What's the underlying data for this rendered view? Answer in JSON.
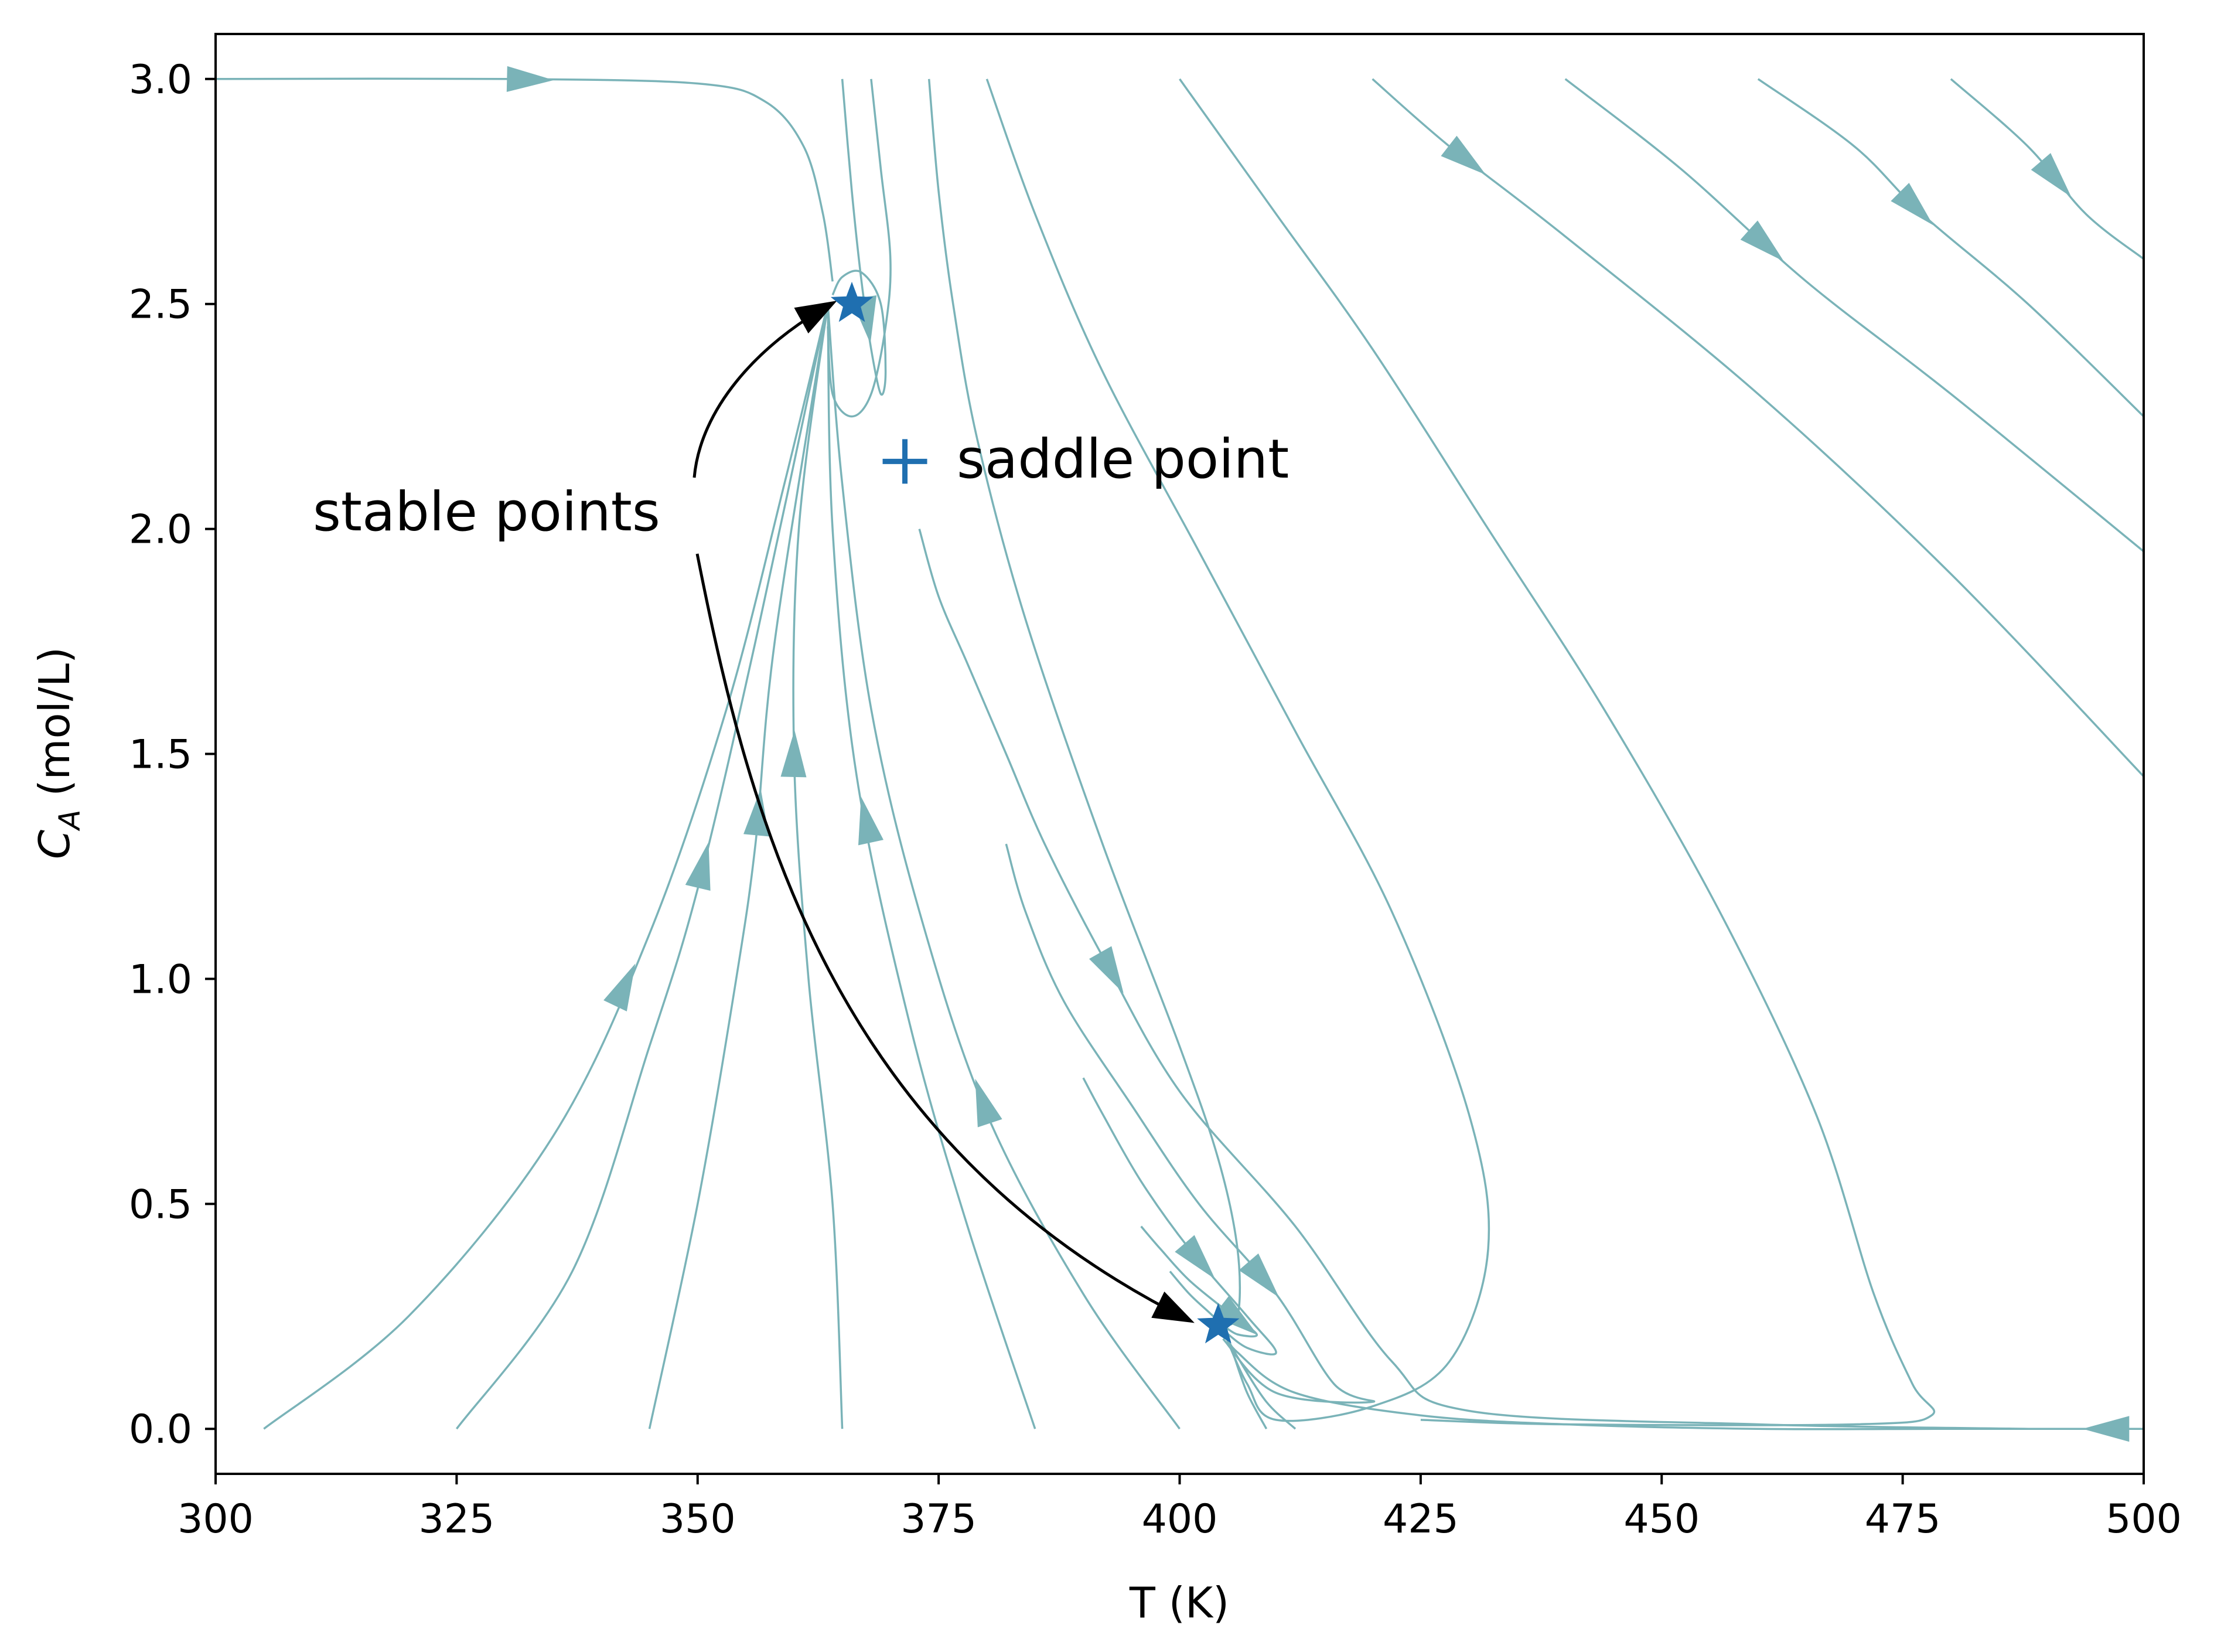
{
  "chart_data": {
    "type": "streamplot",
    "xlabel": "T (K)",
    "ylabel_main": "C",
    "ylabel_subscript": "A",
    "ylabel_unit": "(mol/L)",
    "xlim": [
      300,
      500
    ],
    "ylim": [
      -0.1,
      3.1
    ],
    "xticks": [
      300,
      325,
      350,
      375,
      400,
      425,
      450,
      475,
      500
    ],
    "yticks": [
      0.0,
      0.5,
      1.0,
      1.5,
      2.0,
      2.5,
      3.0
    ],
    "xtick_labels": [
      "300",
      "325",
      "350",
      "375",
      "400",
      "425",
      "450",
      "475",
      "500"
    ],
    "ytick_labels": [
      "0.0",
      "0.5",
      "1.0",
      "1.5",
      "2.0",
      "2.5",
      "3.0"
    ],
    "grid": false,
    "stream_color": "#7ab3b8",
    "marker_color": "#1f6fb0",
    "equilibria": [
      {
        "kind": "stable",
        "marker": "star",
        "T": 366,
        "CA": 2.5
      },
      {
        "kind": "stable",
        "marker": "star",
        "T": 404,
        "CA": 0.23
      },
      {
        "kind": "saddle",
        "marker": "plus",
        "T": 371.5,
        "CA": 2.15
      }
    ],
    "annotations": [
      {
        "text": "stable points",
        "T": 310,
        "CA": 2.05,
        "arrows_to": [
          [
            363.5,
            2.5
          ],
          [
            401.5,
            0.24
          ]
        ]
      },
      {
        "text": "saddle point",
        "T": 374,
        "CA": 2.15
      }
    ],
    "streamlines": [
      {
        "points": [
          [
            300,
            3.0
          ],
          [
            330,
            3.0
          ],
          [
            350,
            2.99
          ],
          [
            357,
            2.95
          ],
          [
            361,
            2.85
          ],
          [
            363,
            2.7
          ],
          [
            364,
            2.55
          ]
        ],
        "arrows": [
          0.42
        ]
      },
      {
        "points": [
          [
            305,
            0.0
          ],
          [
            320,
            0.25
          ],
          [
            335,
            0.65
          ],
          [
            345,
            1.1
          ],
          [
            353,
            1.6
          ],
          [
            359,
            2.1
          ],
          [
            363.5,
            2.5
          ]
        ],
        "arrows": [
          0.45
        ]
      },
      {
        "points": [
          [
            325,
            0.0
          ],
          [
            337,
            0.35
          ],
          [
            345,
            0.85
          ],
          [
            350,
            1.2
          ],
          [
            356,
            1.75
          ],
          [
            363.5,
            2.5
          ]
        ],
        "arrows": [
          0.52
        ]
      },
      {
        "points": [
          [
            345,
            0.0
          ],
          [
            350,
            0.5
          ],
          [
            354,
            1.0
          ],
          [
            356,
            1.3
          ],
          [
            358,
            1.75
          ],
          [
            363.5,
            2.5
          ]
        ],
        "arrows": [
          0.55
        ]
      },
      {
        "points": [
          [
            365,
            0.0
          ],
          [
            364,
            0.5
          ],
          [
            361.5,
            1.0
          ],
          [
            360,
            1.5
          ],
          [
            360.5,
            2.0
          ],
          [
            363.5,
            2.5
          ]
        ],
        "arrows": [
          0.6
        ]
      },
      {
        "points": [
          [
            385,
            0.0
          ],
          [
            378,
            0.45
          ],
          [
            372,
            0.9
          ],
          [
            366.5,
            1.45
          ],
          [
            364,
            2.0
          ],
          [
            363.5,
            2.5
          ]
        ],
        "arrows": [
          0.55
        ]
      },
      {
        "points": [
          [
            400,
            0.0
          ],
          [
            390,
            0.3
          ],
          [
            380,
            0.7
          ],
          [
            373,
            1.15
          ],
          [
            368,
            1.6
          ],
          [
            365,
            2.1
          ],
          [
            363.5,
            2.5
          ]
        ],
        "arrows": [
          0.32
        ]
      },
      {
        "points": [
          [
            365,
            3.0
          ],
          [
            366,
            2.75
          ],
          [
            367,
            2.55
          ],
          [
            368,
            2.4
          ],
          [
            369,
            2.3
          ],
          [
            369.5,
            2.35
          ],
          [
            369,
            2.5
          ],
          [
            367,
            2.57
          ],
          [
            365,
            2.56
          ],
          [
            364,
            2.52
          ]
        ],
        "arrows": [
          0.5
        ]
      },
      {
        "points": [
          [
            368,
            3.0
          ],
          [
            369,
            2.8
          ],
          [
            370,
            2.6
          ],
          [
            369.5,
            2.45
          ],
          [
            368,
            2.3
          ],
          [
            366,
            2.25
          ],
          [
            364,
            2.3
          ],
          [
            363.5,
            2.45
          ]
        ],
        "arrows": []
      },
      {
        "points": [
          [
            374,
            3.0
          ],
          [
            375,
            2.75
          ],
          [
            376.5,
            2.5
          ],
          [
            379,
            2.2
          ],
          [
            384,
            1.8
          ],
          [
            392,
            1.3
          ],
          [
            400,
            0.85
          ],
          [
            404,
            0.6
          ],
          [
            406,
            0.4
          ],
          [
            406,
            0.25
          ],
          [
            404,
            0.23
          ]
        ],
        "arrows": []
      },
      {
        "points": [
          [
            380,
            3.0
          ],
          [
            385,
            2.7
          ],
          [
            392,
            2.35
          ],
          [
            402,
            1.95
          ],
          [
            412,
            1.55
          ],
          [
            422,
            1.15
          ],
          [
            430,
            0.7
          ],
          [
            432,
            0.4
          ],
          [
            428,
            0.15
          ],
          [
            420,
            0.05
          ],
          [
            410,
            0.02
          ],
          [
            407,
            0.1
          ],
          [
            404.5,
            0.22
          ]
        ],
        "arrows": []
      },
      {
        "points": [
          [
            400,
            3.0
          ],
          [
            410,
            2.7
          ],
          [
            420,
            2.4
          ],
          [
            432,
            2.0
          ],
          [
            444,
            1.6
          ],
          [
            456,
            1.15
          ],
          [
            466,
            0.7
          ],
          [
            472,
            0.3
          ],
          [
            476,
            0.1
          ],
          [
            478,
            0.03
          ],
          [
            470,
            0.01
          ],
          [
            440,
            0.01
          ],
          [
            425,
            0.02
          ]
        ],
        "arrows": []
      },
      {
        "points": [
          [
            420,
            3.0
          ],
          [
            428,
            2.85
          ],
          [
            440,
            2.65
          ],
          [
            460,
            2.3
          ],
          [
            480,
            1.9
          ],
          [
            500,
            1.45
          ]
        ],
        "arrows": [
          0.12
        ]
      },
      {
        "points": [
          [
            440,
            3.0
          ],
          [
            452,
            2.8
          ],
          [
            465,
            2.55
          ],
          [
            480,
            2.3
          ],
          [
            500,
            1.95
          ]
        ],
        "arrows": [
          0.35
        ]
      },
      {
        "points": [
          [
            460,
            3.0
          ],
          [
            470,
            2.85
          ],
          [
            477,
            2.7
          ],
          [
            488,
            2.5
          ],
          [
            500,
            2.25
          ]
        ],
        "arrows": [
          0.4
        ]
      },
      {
        "points": [
          [
            480,
            3.0
          ],
          [
            488,
            2.85
          ],
          [
            494,
            2.7
          ],
          [
            500,
            2.6
          ]
        ],
        "arrows": [
          0.55
        ]
      },
      {
        "points": [
          [
            373,
            2.0
          ],
          [
            375,
            1.85
          ],
          [
            378,
            1.7
          ],
          [
            382,
            1.5
          ],
          [
            386,
            1.3
          ],
          [
            392,
            1.05
          ],
          [
            400,
            0.75
          ],
          [
            412,
            0.45
          ],
          [
            422,
            0.15
          ],
          [
            430,
            0.04
          ],
          [
            460,
            0.01
          ],
          [
            488,
            0.0
          ]
        ],
        "arrows": [
          0.3
        ]
      },
      {
        "points": [
          [
            382,
            1.3
          ],
          [
            384,
            1.15
          ],
          [
            388,
            0.95
          ],
          [
            395,
            0.72
          ],
          [
            402,
            0.5
          ],
          [
            410,
            0.3
          ],
          [
            416,
            0.1
          ],
          [
            420,
            0.06
          ],
          [
            410,
            0.08
          ],
          [
            404.5,
            0.2
          ]
        ],
        "arrows": [
          0.6
        ]
      },
      {
        "points": [
          [
            390,
            0.78
          ],
          [
            392,
            0.7
          ],
          [
            396,
            0.55
          ],
          [
            401,
            0.4
          ],
          [
            407,
            0.25
          ],
          [
            410,
            0.17
          ],
          [
            407,
            0.18
          ],
          [
            404.5,
            0.22
          ]
        ],
        "arrows": [
          0.55
        ]
      },
      {
        "points": [
          [
            396,
            0.45
          ],
          [
            398,
            0.4
          ],
          [
            401,
            0.33
          ],
          [
            405,
            0.26
          ],
          [
            408,
            0.21
          ],
          [
            406,
            0.21
          ],
          [
            404.5,
            0.23
          ]
        ],
        "arrows": [
          0.7
        ]
      },
      {
        "points": [
          [
            399,
            0.35
          ],
          [
            401,
            0.3
          ],
          [
            403,
            0.26
          ],
          [
            404,
            0.24
          ]
        ],
        "arrows": []
      },
      {
        "points": [
          [
            409,
            0.0
          ],
          [
            407,
            0.08
          ],
          [
            405.5,
            0.17
          ],
          [
            404.5,
            0.22
          ]
        ],
        "arrows": []
      },
      {
        "points": [
          [
            412,
            0.0
          ],
          [
            409,
            0.06
          ],
          [
            406,
            0.16
          ],
          [
            404.5,
            0.22
          ]
        ],
        "arrows": []
      },
      {
        "points": [
          [
            500,
            0.0
          ],
          [
            480,
            0.0
          ],
          [
            460,
            0.0
          ],
          [
            440,
            0.01
          ],
          [
            425,
            0.03
          ],
          [
            412,
            0.08
          ],
          [
            406,
            0.17
          ],
          [
            404.5,
            0.22
          ]
        ],
        "arrows": [
          0.04
        ]
      }
    ]
  }
}
